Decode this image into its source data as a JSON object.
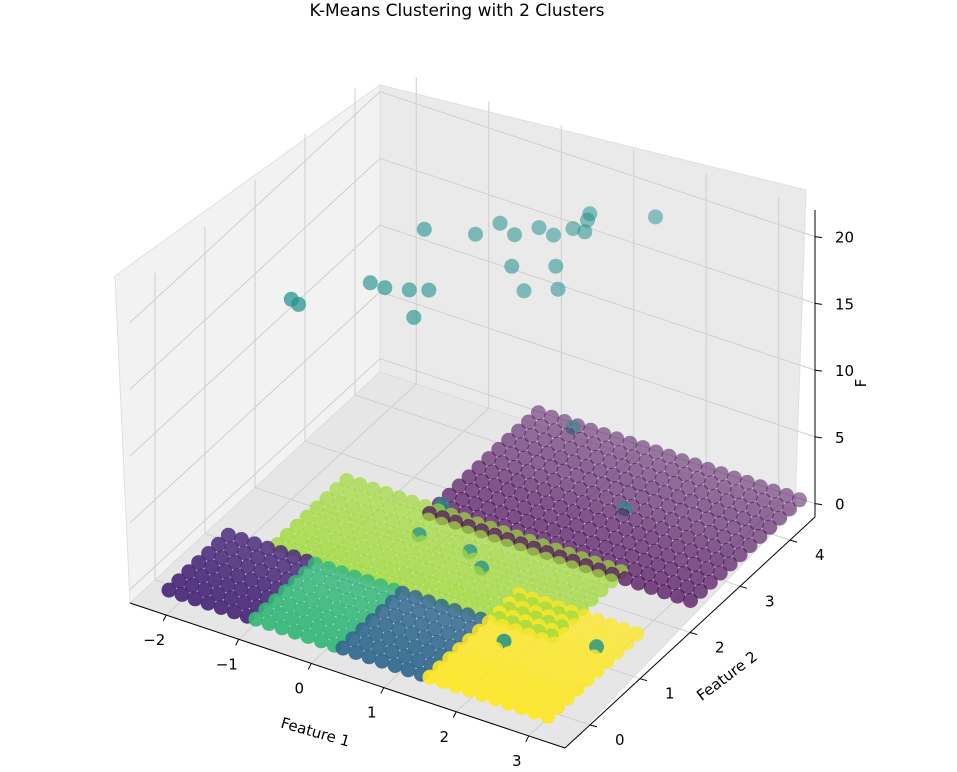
{
  "chart_data": {
    "type": "scatter",
    "projection": "3d",
    "title": "K-Means Clustering with 2 Clusters",
    "xlabel": "Feature 1",
    "ylabel": "Feature 2",
    "zlabel": "F",
    "xticks": [
      "−2",
      "−1",
      "0",
      "1",
      "2",
      "3"
    ],
    "yticks": [
      "0",
      "1",
      "2",
      "3",
      "4"
    ],
    "zticks": [
      "0",
      "5",
      "10",
      "15",
      "20"
    ],
    "xlim": [
      -2.5,
      3.5
    ],
    "ylim": [
      -0.5,
      4.5
    ],
    "zlim": [
      -1,
      22
    ],
    "grid": true,
    "colormap": "viridis",
    "clusters": [
      {
        "color": "#440154",
        "description": "dark purple grid band",
        "x_range": [
          -0.3,
          3.3
        ],
        "y_range": [
          2.3,
          4.5
        ],
        "z": 0
      },
      {
        "color": "#482878",
        "description": "indigo block",
        "x_range": [
          -2.1,
          -0.9
        ],
        "y_range": [
          -0.3,
          0.9
        ],
        "z": 0
      },
      {
        "color": "#35b779",
        "description": "green block",
        "x_range": [
          -0.9,
          0.3
        ],
        "y_range": [
          -0.3,
          0.9
        ],
        "z": 0
      },
      {
        "color": "#31688e",
        "description": "blue block",
        "x_range": [
          0.3,
          1.5
        ],
        "y_range": [
          -0.3,
          0.9
        ],
        "z": 0
      },
      {
        "color": "#fde725",
        "description": "yellow block",
        "x_range": [
          1.5,
          3.2
        ],
        "y_range": [
          -0.3,
          1.6
        ],
        "z": 0
      },
      {
        "color": "#a0da39",
        "description": "yellow-green band",
        "x_range": [
          -1.5,
          2.4
        ],
        "y_range": [
          1.0,
          2.5
        ],
        "z": 0
      },
      {
        "color": "#21918c",
        "description": "teal outliers at high z",
        "points": [
          {
            "x": -2.0,
            "y": 2.0,
            "z": 14.0
          },
          {
            "x": -1.9,
            "y": 2.0,
            "z": 13.8
          },
          {
            "x": -1.6,
            "y": 3.0,
            "z": 12.5
          },
          {
            "x": -1.4,
            "y": 3.0,
            "z": 12.5
          },
          {
            "x": -1.2,
            "y": 3.2,
            "z": 12.0
          },
          {
            "x": -1.0,
            "y": 3.3,
            "z": 12.0
          },
          {
            "x": -1.0,
            "y": 3.0,
            "z": 11.0
          },
          {
            "x": -1.2,
            "y": 3.5,
            "z": 15.5
          },
          {
            "x": -0.7,
            "y": 3.8,
            "z": 15.0
          },
          {
            "x": -0.5,
            "y": 4.0,
            "z": 15.5
          },
          {
            "x": -0.3,
            "y": 4.0,
            "z": 15.0
          },
          {
            "x": -0.1,
            "y": 4.2,
            "z": 15.2
          },
          {
            "x": 0.1,
            "y": 4.2,
            "z": 15.0
          },
          {
            "x": 0.3,
            "y": 4.3,
            "z": 15.5
          },
          {
            "x": -0.2,
            "y": 3.8,
            "z": 13.5
          },
          {
            "x": 0.2,
            "y": 4.1,
            "z": 13.2
          },
          {
            "x": -0.1,
            "y": 3.9,
            "z": 11.5
          },
          {
            "x": 0.3,
            "y": 4.0,
            "z": 12.0
          },
          {
            "x": 0.6,
            "y": 4.2,
            "z": 17.5
          },
          {
            "x": 0.6,
            "y": 4.1,
            "z": 16.5
          },
          {
            "x": 0.5,
            "y": 4.3,
            "z": 16.5
          },
          {
            "x": 1.3,
            "y": 4.5,
            "z": 17.5
          },
          {
            "x": -0.1,
            "y": 1.8,
            "z": 0.5
          },
          {
            "x": 0.6,
            "y": 1.8,
            "z": 0.5
          },
          {
            "x": 0.9,
            "y": 1.6,
            "z": 0.5
          },
          {
            "x": 1.7,
            "y": 3.3,
            "z": 0.5
          },
          {
            "x": 1.9,
            "y": 0.6,
            "z": 0.3
          },
          {
            "x": 2.9,
            "y": 1.0,
            "z": 0.3
          },
          {
            "x": 0.3,
            "y": 4.3,
            "z": 0.6
          },
          {
            "x": -0.2,
            "y": 2.4,
            "z": 0.5
          }
        ]
      }
    ]
  }
}
